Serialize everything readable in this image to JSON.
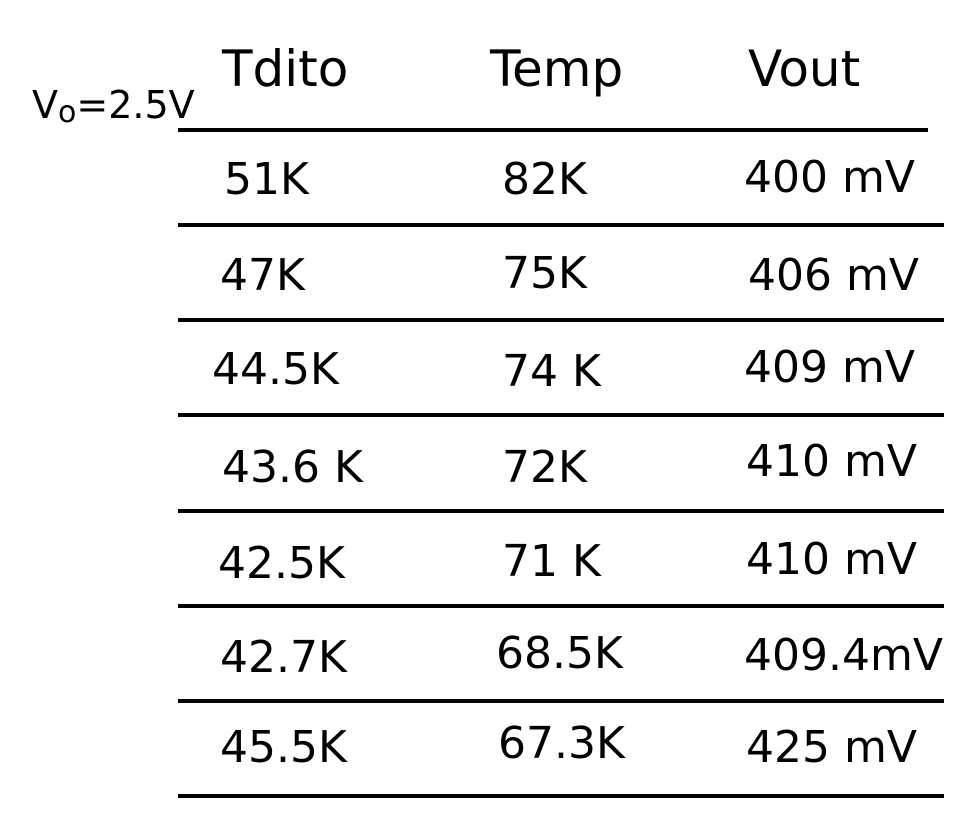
{
  "note": {
    "symbol": "V",
    "subscript": "o",
    "value": "=2.5V"
  },
  "table": {
    "headers": [
      "Tdito",
      "Temp",
      "Vout"
    ],
    "rows": [
      [
        "51K",
        "82K",
        "400 mV"
      ],
      [
        "47K",
        "75K",
        "406 mV"
      ],
      [
        "44.5K",
        "74 K",
        "409 mV"
      ],
      [
        "43.6 K",
        "72K",
        "410 mV"
      ],
      [
        "42.5K",
        "71 K",
        "410 mV"
      ],
      [
        "42.7K",
        "68.5K",
        "409.4mV"
      ],
      [
        "45.5K",
        "67.3K",
        "425 mV"
      ]
    ]
  }
}
